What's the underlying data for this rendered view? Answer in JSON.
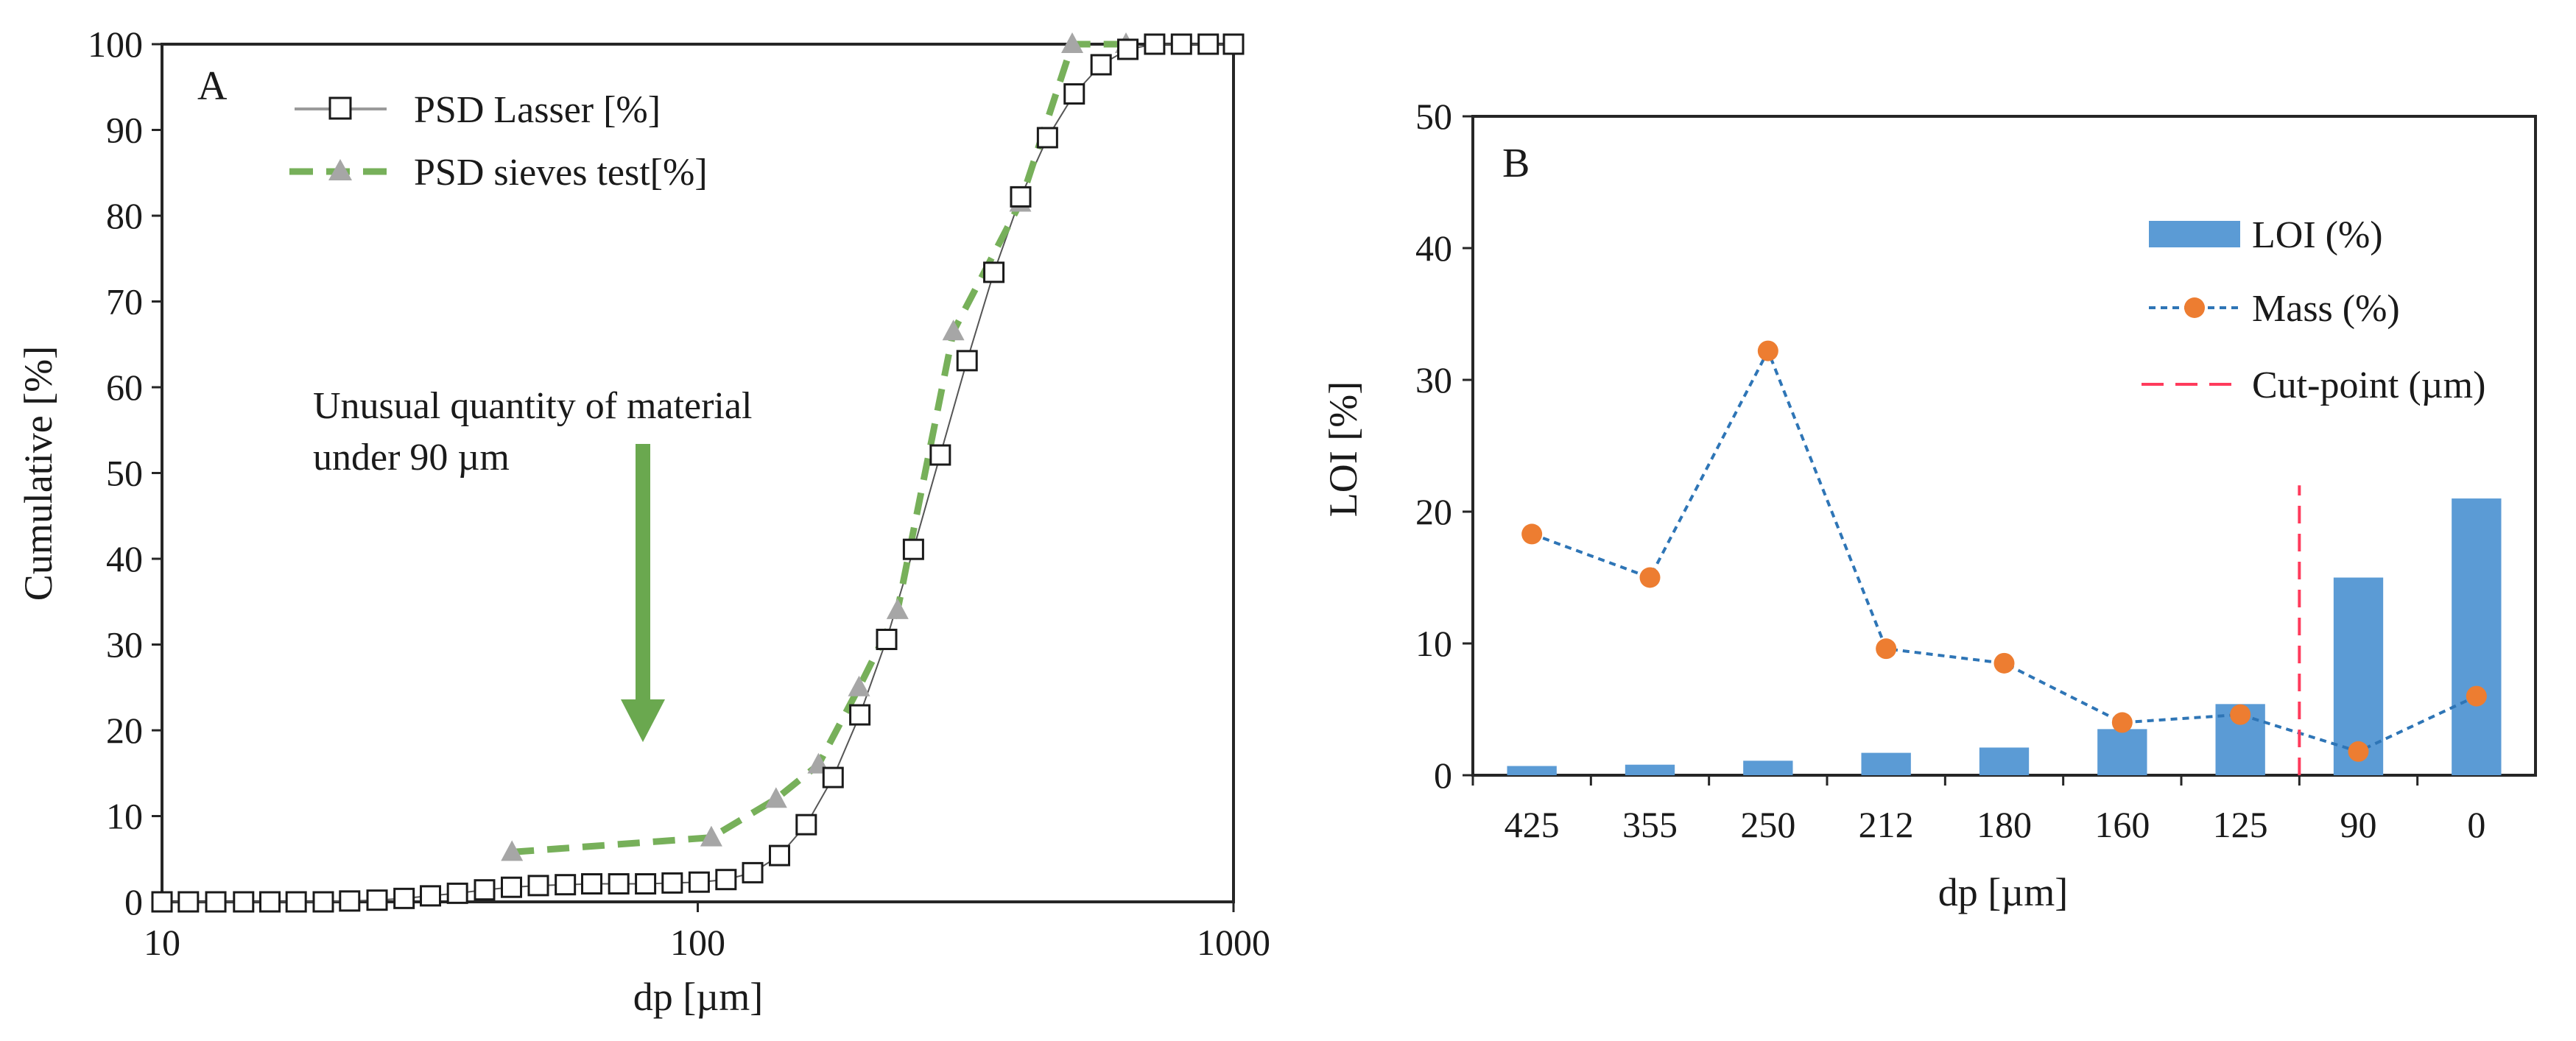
{
  "chart_data": [
    {
      "type": "line",
      "panel_label": "A",
      "xscale": "log",
      "xlabel": "dp [µm]",
      "ylabel": "Cumulative [%]",
      "xlim": [
        10,
        1000
      ],
      "ylim": [
        0,
        100
      ],
      "xticks": [
        10,
        100,
        1000
      ],
      "xtick_labels": [
        "10",
        "100",
        "1000"
      ],
      "yticks": [
        0,
        10,
        20,
        30,
        40,
        50,
        60,
        70,
        80,
        90,
        100
      ],
      "ytick_labels": [
        "0",
        "10",
        "20",
        "30",
        "40",
        "50",
        "60",
        "70",
        "80",
        "90",
        "100"
      ],
      "legend_position": "top-left",
      "series": [
        {
          "name": "PSD Lasser [%]",
          "color": "#999999",
          "marker": "open-square",
          "x": [
            10,
            11.2,
            12.6,
            14.2,
            15.9,
            17.8,
            20,
            22.4,
            25.2,
            28.3,
            31.7,
            35.6,
            40,
            44.9,
            50.4,
            56.6,
            63.4,
            71.2,
            79.9,
            89.6,
            100.6,
            112.9,
            126.6,
            142.1,
            159.4,
            178.9,
            200.7,
            225.2,
            252.7,
            283.6,
            318.2,
            357,
            400.6,
            449.5,
            504.4,
            566,
            635,
            712.5,
            799.5,
            897.1,
            1000
          ],
          "y": [
            0,
            0,
            0,
            0,
            0,
            0,
            0,
            0.1,
            0.2,
            0.4,
            0.7,
            1.0,
            1.4,
            1.7,
            1.9,
            2.0,
            2.1,
            2.1,
            2.1,
            2.2,
            2.3,
            2.6,
            3.4,
            5.4,
            9.0,
            14.5,
            21.8,
            30.6,
            41.1,
            52.1,
            63.1,
            73.4,
            82.2,
            89.1,
            94.2,
            97.6,
            99.4,
            100,
            100,
            100,
            100
          ]
        },
        {
          "name": "PSD sieves test[%]",
          "color": "#77b05a",
          "marker_color": "#a6a6a6",
          "marker": "triangle",
          "x": [
            45,
            106,
            140,
            168,
            200,
            236,
            300,
            400,
            500,
            630
          ],
          "y": [
            5.8,
            7.5,
            12,
            16,
            25,
            34,
            66.5,
            81.5,
            100,
            100
          ]
        }
      ],
      "annotation": {
        "text_lines": [
          "Unusual quantity of material",
          "under 90 µm"
        ],
        "arrow_color": "#6aa84f"
      }
    },
    {
      "type": "bar",
      "panel_label": "B",
      "xlabel": "dp [µm]",
      "ylabel": "LOI [%]",
      "ylim": [
        0,
        50
      ],
      "yticks": [
        0,
        10,
        20,
        30,
        40,
        50
      ],
      "ytick_labels": [
        "0",
        "10",
        "20",
        "30",
        "40",
        "50"
      ],
      "categories": [
        "425",
        "355",
        "250",
        "212",
        "180",
        "160",
        "125",
        "90",
        "0"
      ],
      "legend_position": "top-right",
      "series": [
        {
          "name": "LOI (%)",
          "type": "bar",
          "color": "#5b9bd5",
          "values": [
            0.7,
            0.8,
            1.1,
            1.7,
            2.1,
            3.5,
            5.4,
            15,
            21
          ]
        },
        {
          "name": "Mass (%)",
          "type": "line",
          "style": "dotted",
          "line_color": "#2e75b6",
          "marker_color": "#ed7d31",
          "values": [
            18.3,
            15,
            32.2,
            9.6,
            8.5,
            4,
            4.6,
            1.8,
            6
          ]
        },
        {
          "name": "Cut-point (µm)",
          "type": "vline",
          "style": "dashed",
          "color": "#ff3b5c",
          "y_range": [
            0,
            22
          ]
        }
      ]
    }
  ]
}
